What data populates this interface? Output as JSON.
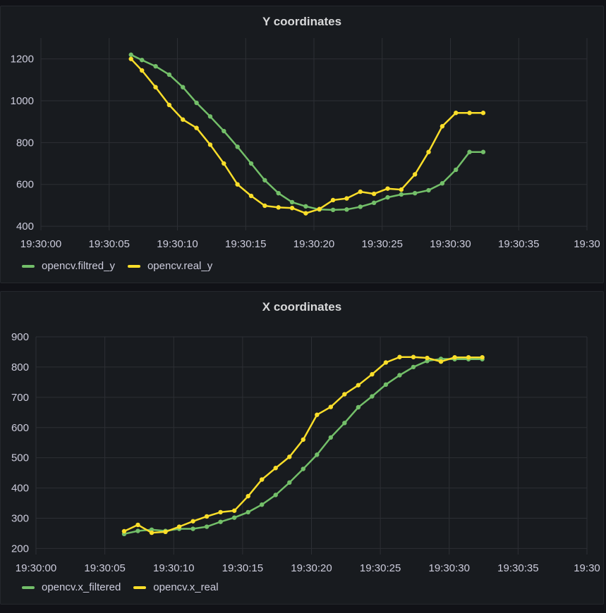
{
  "chart_data": [
    {
      "type": "line",
      "title": "Y coordinates",
      "x_ticks": [
        "19:30:00",
        "19:30:05",
        "19:30:10",
        "19:30:15",
        "19:30:20",
        "19:30:25",
        "19:30:30",
        "19:30:35",
        "19:30"
      ],
      "x_tick_seconds": [
        0,
        5,
        10,
        15,
        20,
        25,
        30,
        35,
        40
      ],
      "y_ticks": [
        400,
        600,
        800,
        1000,
        1200
      ],
      "xlim": [
        0,
        40
      ],
      "ylim": [
        380,
        1300
      ],
      "grid": true,
      "legend_position": "bottom-left",
      "x": [
        6.6,
        7.4,
        8.4,
        9.4,
        10.4,
        11.4,
        12.4,
        13.4,
        14.4,
        15.4,
        16.4,
        17.4,
        18.4,
        19.4,
        20.4,
        21.4,
        22.4,
        23.4,
        24.4,
        25.4,
        26.4,
        27.4,
        28.4,
        29.4,
        30.4,
        31.4,
        32.4
      ],
      "series": [
        {
          "name": "opencv.filtred_y",
          "color": "#73bf69",
          "values": [
            1220,
            1195,
            1165,
            1125,
            1065,
            990,
            925,
            855,
            780,
            700,
            620,
            558,
            515,
            495,
            480,
            478,
            480,
            493,
            512,
            538,
            552,
            558,
            572,
            605,
            670,
            755,
            755
          ]
        },
        {
          "name": "opencv.real_y",
          "color": "#fade2a",
          "values": [
            1200,
            1145,
            1065,
            980,
            910,
            870,
            790,
            700,
            600,
            545,
            498,
            490,
            487,
            462,
            482,
            525,
            533,
            565,
            555,
            580,
            575,
            648,
            755,
            878,
            942,
            942,
            942
          ]
        }
      ]
    },
    {
      "type": "line",
      "title": "X coordinates",
      "x_ticks": [
        "19:30:00",
        "19:30:05",
        "19:30:10",
        "19:30:15",
        "19:30:20",
        "19:30:25",
        "19:30:30",
        "19:30:35",
        "19:30"
      ],
      "x_tick_seconds": [
        0,
        5,
        10,
        15,
        20,
        25,
        30,
        35,
        40
      ],
      "y_ticks": [
        200,
        300,
        400,
        500,
        600,
        700,
        800,
        900
      ],
      "xlim": [
        0,
        40
      ],
      "ylim": [
        180,
        900
      ],
      "grid": true,
      "legend_position": "bottom-left",
      "x": [
        6.4,
        7.4,
        8.4,
        9.4,
        10.4,
        11.4,
        12.4,
        13.4,
        14.4,
        15.4,
        16.4,
        17.4,
        18.4,
        19.4,
        20.4,
        21.4,
        22.4,
        23.4,
        24.4,
        25.4,
        26.4,
        27.4,
        28.4,
        29.4,
        30.4,
        31.4,
        32.4
      ],
      "series": [
        {
          "name": "opencv.x_filtered",
          "color": "#73bf69",
          "values": [
            248,
            258,
            262,
            258,
            265,
            265,
            272,
            288,
            302,
            320,
            345,
            377,
            418,
            463,
            510,
            567,
            615,
            667,
            703,
            742,
            773,
            800,
            820,
            827,
            826,
            826,
            826
          ]
        },
        {
          "name": "opencv.x_real",
          "color": "#fade2a",
          "values": [
            257,
            278,
            252,
            255,
            272,
            290,
            306,
            320,
            325,
            373,
            428,
            466,
            503,
            560,
            642,
            668,
            710,
            740,
            776,
            815,
            833,
            833,
            830,
            818,
            832,
            832,
            832
          ]
        }
      ]
    }
  ]
}
